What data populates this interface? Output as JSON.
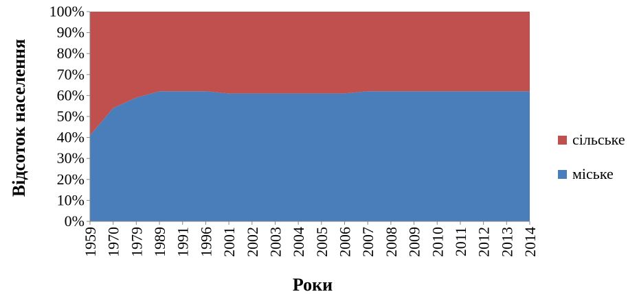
{
  "chart_data": {
    "type": "area",
    "stacked": "percent",
    "categories": [
      "1959",
      "1970",
      "1979",
      "1989",
      "1991",
      "1996",
      "2001",
      "2002",
      "2003",
      "2004",
      "2005",
      "2006",
      "2007",
      "2008",
      "2009",
      "2010",
      "2011",
      "2012",
      "2013",
      "2014"
    ],
    "series": [
      {
        "name": "міське",
        "color": "#4a7ebb",
        "values": [
          41,
          54,
          59,
          62,
          62,
          62,
          61,
          61,
          61,
          61,
          61,
          61,
          62,
          62,
          62,
          62,
          62,
          62,
          62,
          62
        ]
      },
      {
        "name": "сільське",
        "color": "#c0504d",
        "values": [
          59,
          46,
          41,
          38,
          38,
          38,
          39,
          39,
          39,
          39,
          39,
          39,
          38,
          38,
          38,
          38,
          38,
          38,
          38,
          38
        ]
      }
    ],
    "xlabel": "Роки",
    "ylabel": "Відсоток населення",
    "ylim": [
      0,
      100
    ],
    "yticks": [
      "0%",
      "10%",
      "20%",
      "30%",
      "40%",
      "50%",
      "60%",
      "70%",
      "80%",
      "90%",
      "100%"
    ],
    "grid": false,
    "legend": {
      "placement": "right",
      "order": [
        "сільське",
        "міське"
      ]
    }
  }
}
